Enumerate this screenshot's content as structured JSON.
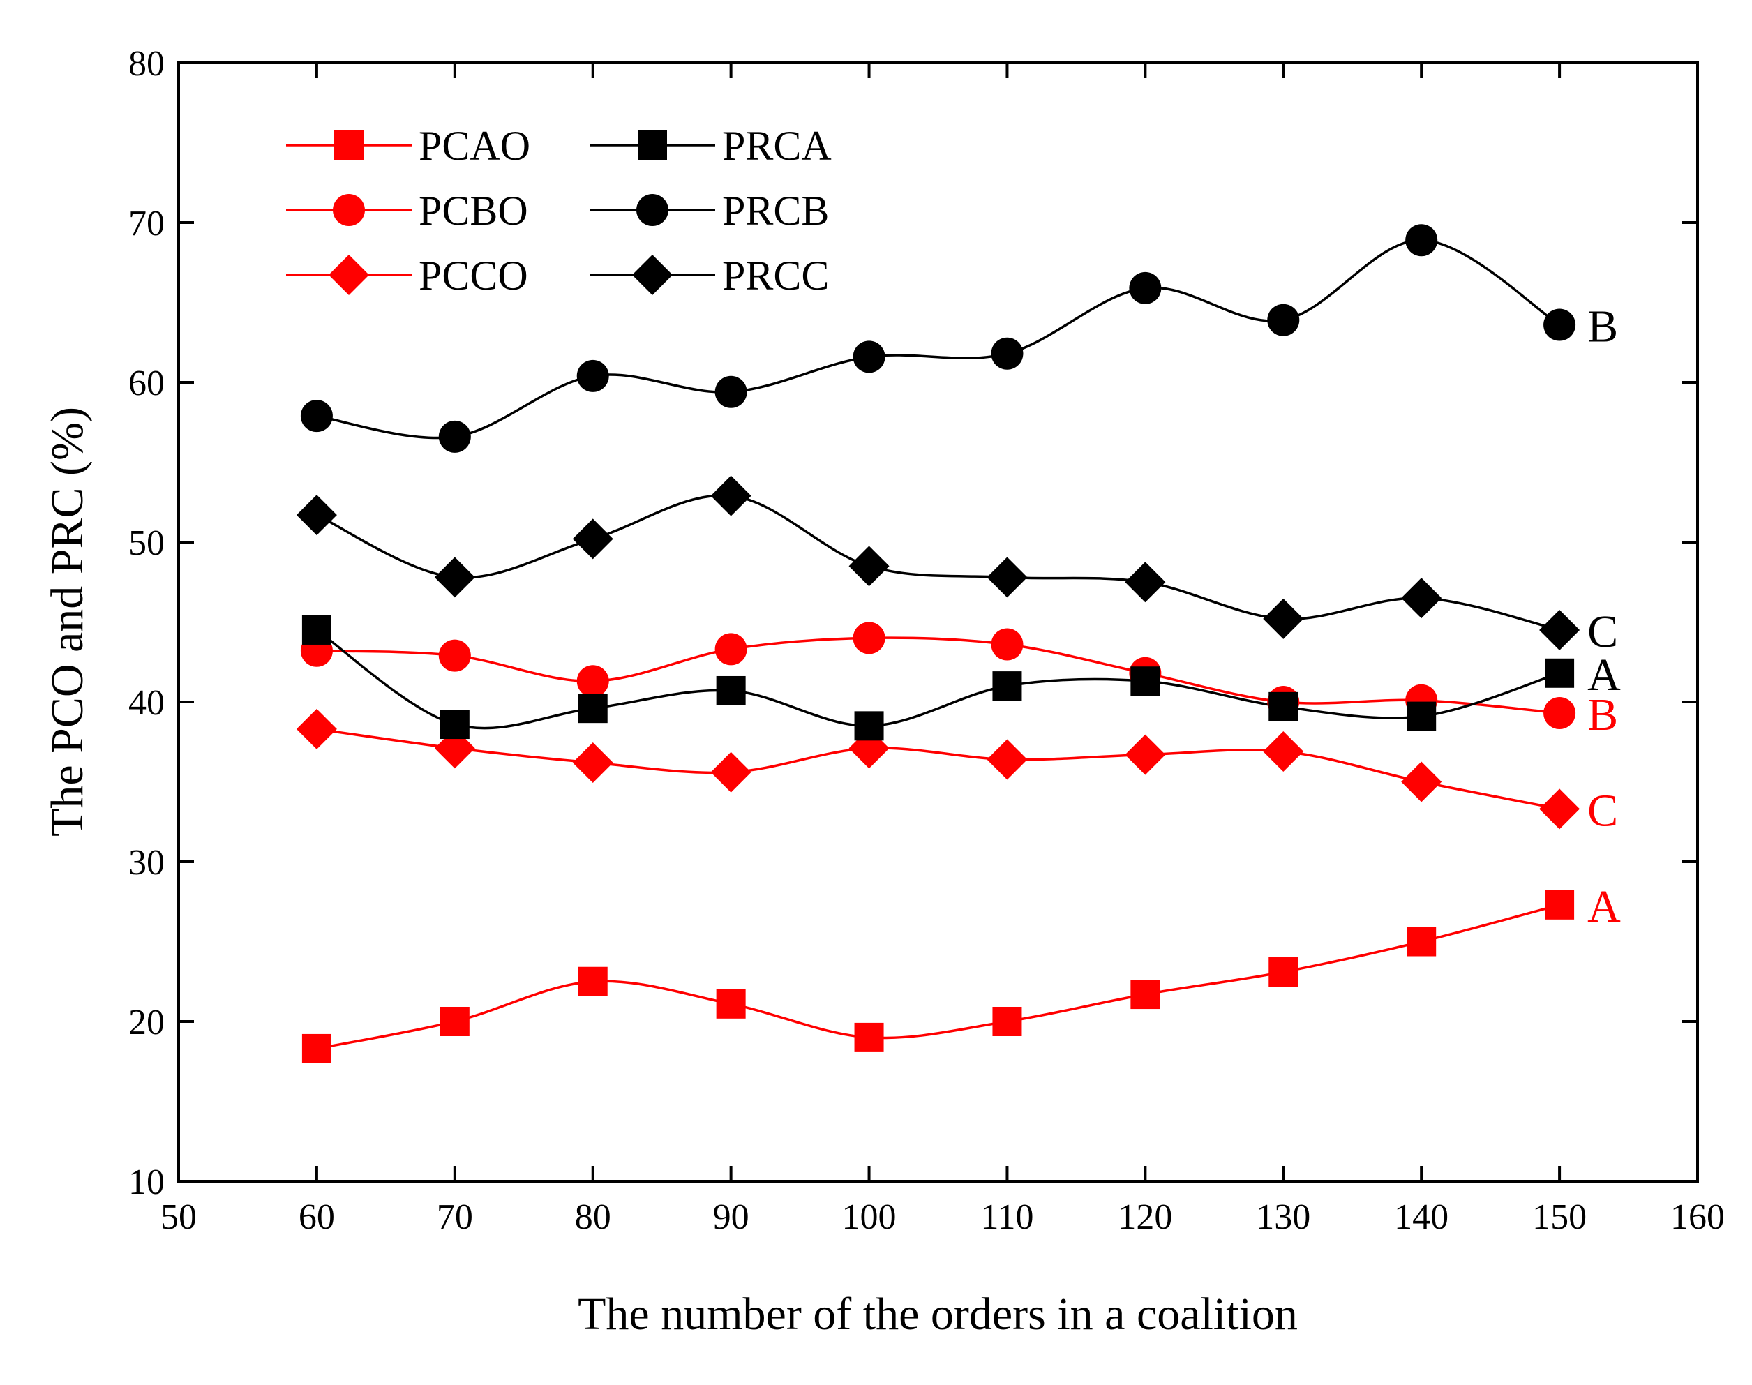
{
  "chart_data": {
    "type": "line",
    "title": "",
    "xlabel": "The number of the orders in a coalition",
    "ylabel": "The PCO and PRC (%)",
    "xlim": [
      50,
      160
    ],
    "ylim": [
      10,
      80
    ],
    "xticks": [
      50,
      60,
      70,
      80,
      90,
      100,
      110,
      120,
      130,
      140,
      150,
      160
    ],
    "yticks": [
      10,
      20,
      30,
      40,
      50,
      60,
      70,
      80
    ],
    "grid": false,
    "legend_position": "top-left",
    "x": [
      60,
      70,
      80,
      90,
      100,
      110,
      120,
      130,
      140,
      150
    ],
    "series": [
      {
        "name": "PCAO",
        "color": "#ff0000",
        "marker": "square",
        "values": [
          18.3,
          20.0,
          22.5,
          21.1,
          19.0,
          20.0,
          21.7,
          23.1,
          25.0,
          27.3
        ],
        "end_label": "A"
      },
      {
        "name": "PCBO",
        "color": "#ff0000",
        "marker": "circle",
        "values": [
          43.2,
          42.9,
          41.3,
          43.3,
          44.0,
          43.6,
          41.8,
          40.0,
          40.1,
          39.3
        ],
        "end_label": "B"
      },
      {
        "name": "PCCO",
        "color": "#ff0000",
        "marker": "diamond",
        "values": [
          38.3,
          37.1,
          36.2,
          35.6,
          37.1,
          36.4,
          36.7,
          36.9,
          35.0,
          33.3
        ],
        "end_label": "C"
      },
      {
        "name": "PRCA",
        "color": "#000000",
        "marker": "square",
        "values": [
          44.5,
          38.6,
          39.6,
          40.7,
          38.5,
          41.0,
          41.3,
          39.7,
          39.1,
          41.8
        ],
        "end_label": "A"
      },
      {
        "name": "PRCB",
        "color": "#000000",
        "marker": "circle",
        "values": [
          57.9,
          56.6,
          60.4,
          59.4,
          61.6,
          61.8,
          65.9,
          63.9,
          68.9,
          63.6
        ],
        "end_label": "B"
      },
      {
        "name": "PRCC",
        "color": "#000000",
        "marker": "diamond",
        "values": [
          51.7,
          47.8,
          50.2,
          52.9,
          48.5,
          47.8,
          47.5,
          45.2,
          46.5,
          44.5
        ],
        "end_label": "C"
      }
    ]
  }
}
